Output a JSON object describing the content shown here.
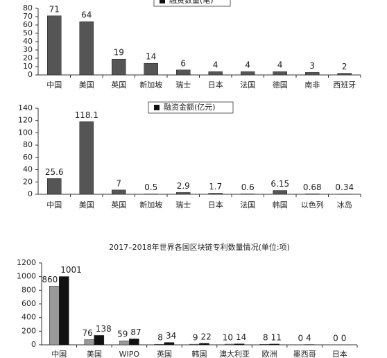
{
  "chart_data": [
    {
      "type": "bar",
      "categories": [
        "中国",
        "美国",
        "英国",
        "新加坡",
        "瑞士",
        "日本",
        "法国",
        "德国",
        "南非",
        "西班牙"
      ],
      "series": [
        {
          "name": "融资数量(笔)",
          "color": "#555555",
          "values": [
            71,
            64,
            19,
            14,
            6,
            4,
            4,
            4,
            3,
            2
          ]
        }
      ],
      "ylim": [
        0,
        80
      ],
      "yticks": [
        0,
        10,
        20,
        30,
        40,
        50,
        60,
        70,
        80
      ]
    },
    {
      "type": "bar",
      "categories": [
        "中国",
        "美国",
        "英国",
        "新加坡",
        "瑞士",
        "日本",
        "法国",
        "韩国",
        "以色列",
        "冰岛"
      ],
      "series": [
        {
          "name": "融资金额(亿元)",
          "color": "#555555",
          "values": [
            25.6,
            118.1,
            7,
            0.5,
            2.9,
            1.7,
            0.6,
            6.15,
            0.68,
            0.34
          ]
        }
      ],
      "ylim": [
        0,
        140
      ],
      "yticks": [
        0,
        20,
        40,
        60,
        80,
        100,
        120,
        140
      ]
    },
    {
      "type": "bar",
      "title": "2017–2018年世界各国区块链专利数量情况(单位:项)",
      "categories": [
        "中国",
        "美国",
        "WIPO",
        "英国",
        "韩国",
        "澳大利亚",
        "欧洲",
        "墨西哥",
        "日本"
      ],
      "series": [
        {
          "color": "#999999",
          "values": [
            860,
            76,
            59,
            8,
            9,
            10,
            8,
            0,
            0
          ]
        },
        {
          "color": "#111111",
          "values": [
            1001,
            138,
            87,
            34,
            22,
            14,
            11,
            4,
            0
          ]
        }
      ],
      "ylim": [
        0,
        1200
      ],
      "yticks": [
        0,
        200,
        400,
        600,
        800,
        1000,
        1200
      ]
    }
  ]
}
